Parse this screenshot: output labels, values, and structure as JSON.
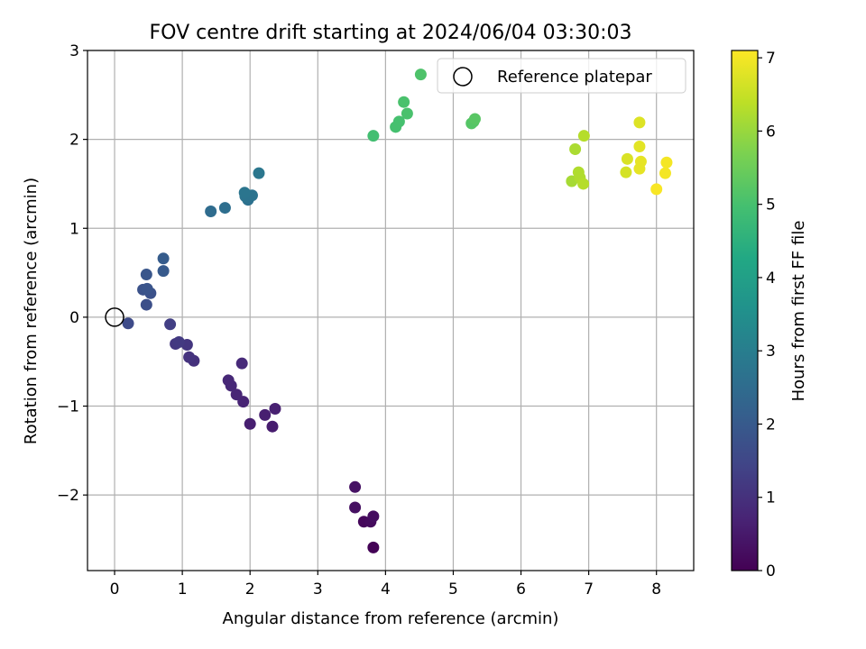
{
  "chart_data": {
    "type": "scatter",
    "title": "FOV centre drift starting at 2024/06/04 03:30:03",
    "xlabel": "Angular distance from reference (arcmin)",
    "ylabel": "Rotation from reference (arcmin)",
    "xlim": [
      -0.4,
      8.55
    ],
    "ylim": [
      -2.85,
      3.0
    ],
    "xticks": [
      "0",
      "1",
      "2",
      "3",
      "4",
      "5",
      "6",
      "7",
      "8"
    ],
    "yticks": [
      "−2",
      "−1",
      "0",
      "1",
      "2",
      "3"
    ],
    "grid": true,
    "legend": {
      "position": "top-right",
      "entries": [
        "Reference platepar"
      ]
    },
    "reference_point": {
      "x": 0,
      "y": 0
    },
    "colorbar": {
      "label": "Hours from first FF file",
      "range": [
        0,
        7.1
      ],
      "ticks": [
        "0",
        "1",
        "2",
        "3",
        "4",
        "5",
        "6",
        "7"
      ],
      "colormap": "viridis"
    },
    "points": [
      {
        "x": 3.82,
        "y": -2.59,
        "c": 0.05
      },
      {
        "x": 3.68,
        "y": -2.3,
        "c": 0.15
      },
      {
        "x": 3.78,
        "y": -2.3,
        "c": 0.2
      },
      {
        "x": 3.82,
        "y": -2.24,
        "c": 0.25
      },
      {
        "x": 3.55,
        "y": -2.14,
        "c": 0.3
      },
      {
        "x": 3.55,
        "y": -1.91,
        "c": 0.35
      },
      {
        "x": 2.33,
        "y": -1.23,
        "c": 0.55
      },
      {
        "x": 2.0,
        "y": -1.2,
        "c": 0.6
      },
      {
        "x": 2.22,
        "y": -1.1,
        "c": 0.6
      },
      {
        "x": 2.37,
        "y": -1.03,
        "c": 0.65
      },
      {
        "x": 1.9,
        "y": -0.95,
        "c": 0.7
      },
      {
        "x": 1.8,
        "y": -0.87,
        "c": 0.75
      },
      {
        "x": 1.72,
        "y": -0.77,
        "c": 0.8
      },
      {
        "x": 1.68,
        "y": -0.71,
        "c": 0.8
      },
      {
        "x": 1.88,
        "y": -0.52,
        "c": 0.85
      },
      {
        "x": 1.17,
        "y": -0.49,
        "c": 1.0
      },
      {
        "x": 1.1,
        "y": -0.45,
        "c": 1.05
      },
      {
        "x": 1.07,
        "y": -0.31,
        "c": 1.1
      },
      {
        "x": 0.9,
        "y": -0.3,
        "c": 1.15
      },
      {
        "x": 0.95,
        "y": -0.28,
        "c": 1.2
      },
      {
        "x": 0.82,
        "y": -0.08,
        "c": 1.3
      },
      {
        "x": 0.2,
        "y": -0.07,
        "c": 1.6
      },
      {
        "x": 0.47,
        "y": 0.14,
        "c": 1.7
      },
      {
        "x": 0.53,
        "y": 0.27,
        "c": 1.75
      },
      {
        "x": 0.42,
        "y": 0.31,
        "c": 1.8
      },
      {
        "x": 0.48,
        "y": 0.32,
        "c": 1.85
      },
      {
        "x": 0.47,
        "y": 0.48,
        "c": 1.9
      },
      {
        "x": 0.72,
        "y": 0.52,
        "c": 2.0
      },
      {
        "x": 0.72,
        "y": 0.66,
        "c": 2.05
      },
      {
        "x": 1.42,
        "y": 1.19,
        "c": 2.5
      },
      {
        "x": 1.63,
        "y": 1.23,
        "c": 2.55
      },
      {
        "x": 1.97,
        "y": 1.32,
        "c": 2.65
      },
      {
        "x": 1.93,
        "y": 1.36,
        "c": 2.7
      },
      {
        "x": 2.03,
        "y": 1.37,
        "c": 2.7
      },
      {
        "x": 1.92,
        "y": 1.4,
        "c": 2.75
      },
      {
        "x": 2.13,
        "y": 1.62,
        "c": 2.8
      },
      {
        "x": 3.82,
        "y": 2.04,
        "c": 4.95
      },
      {
        "x": 4.15,
        "y": 2.14,
        "c": 5.0
      },
      {
        "x": 4.2,
        "y": 2.2,
        "c": 5.0
      },
      {
        "x": 4.32,
        "y": 2.29,
        "c": 5.05
      },
      {
        "x": 4.27,
        "y": 2.42,
        "c": 5.05
      },
      {
        "x": 4.52,
        "y": 2.73,
        "c": 5.1
      },
      {
        "x": 5.27,
        "y": 2.18,
        "c": 5.2
      },
      {
        "x": 5.3,
        "y": 2.2,
        "c": 5.2
      },
      {
        "x": 5.32,
        "y": 2.23,
        "c": 5.25
      },
      {
        "x": 6.75,
        "y": 1.53,
        "c": 6.15
      },
      {
        "x": 6.8,
        "y": 1.89,
        "c": 6.2
      },
      {
        "x": 6.85,
        "y": 1.63,
        "c": 6.25
      },
      {
        "x": 6.87,
        "y": 1.57,
        "c": 6.25
      },
      {
        "x": 6.92,
        "y": 1.5,
        "c": 6.3
      },
      {
        "x": 6.93,
        "y": 2.04,
        "c": 6.3
      },
      {
        "x": 7.55,
        "y": 1.63,
        "c": 6.65
      },
      {
        "x": 7.57,
        "y": 1.78,
        "c": 6.7
      },
      {
        "x": 7.75,
        "y": 2.19,
        "c": 6.75
      },
      {
        "x": 7.75,
        "y": 1.92,
        "c": 6.8
      },
      {
        "x": 7.77,
        "y": 1.75,
        "c": 6.85
      },
      {
        "x": 7.75,
        "y": 1.67,
        "c": 6.85
      },
      {
        "x": 8.0,
        "y": 1.44,
        "c": 7.05
      },
      {
        "x": 8.13,
        "y": 1.62,
        "c": 7.0
      },
      {
        "x": 8.15,
        "y": 1.74,
        "c": 7.0
      }
    ]
  }
}
